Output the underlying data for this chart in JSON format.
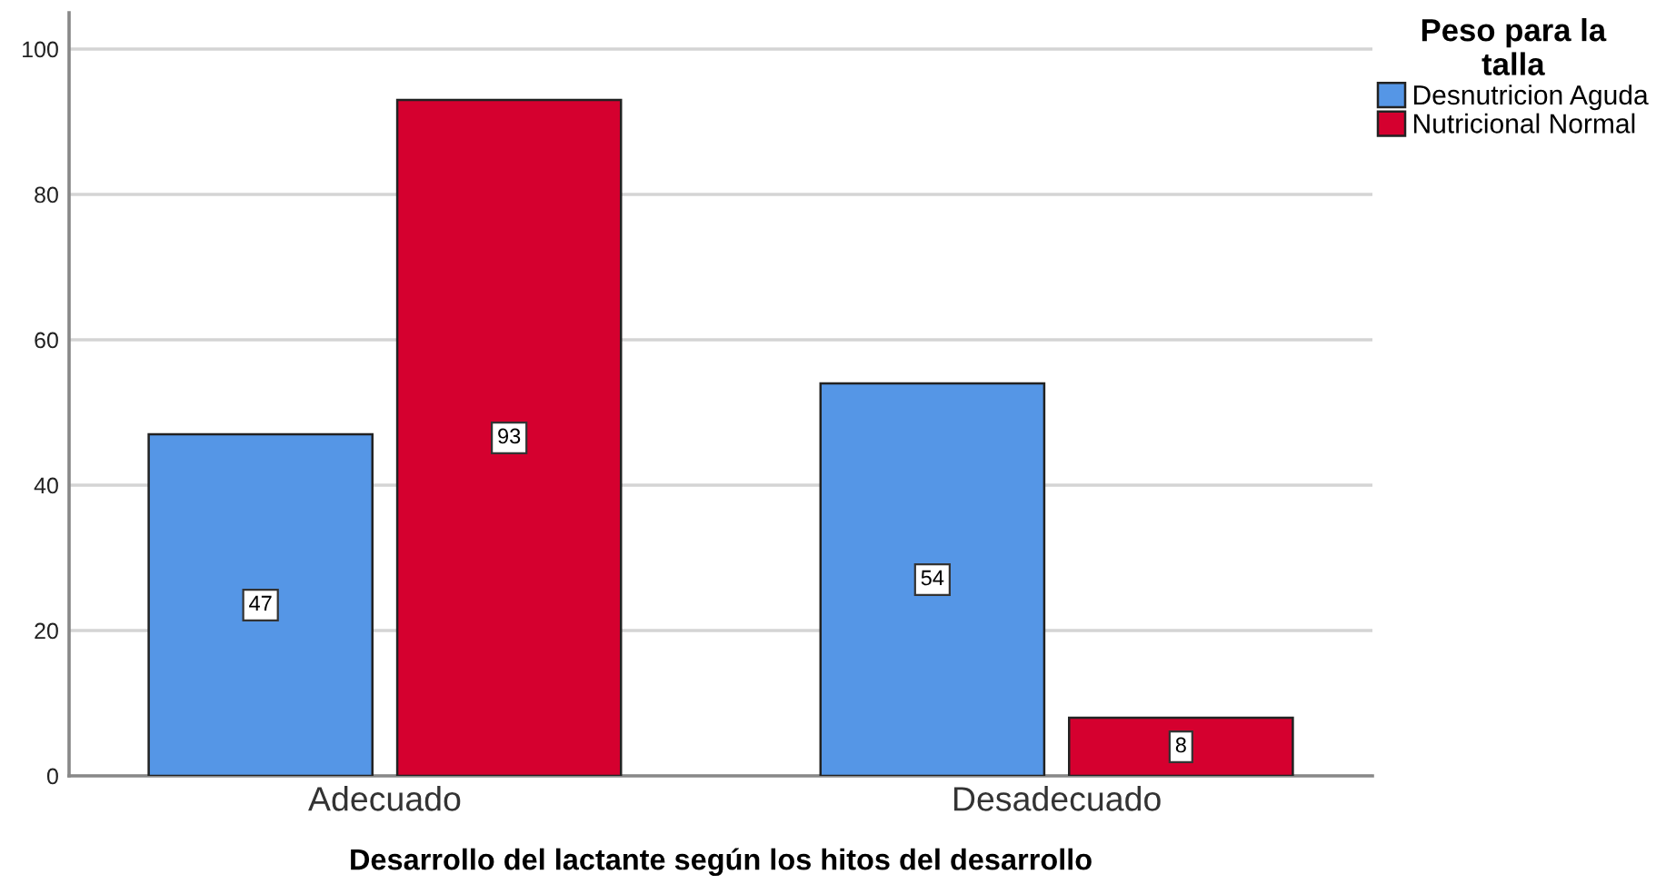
{
  "chart_data": {
    "type": "bar",
    "xlabel": "Desarrollo del lactante según los hitos del desarrollo",
    "legend_title": "Peso para la\ntalla",
    "categories": [
      "Adecuado",
      "Desadecuado"
    ],
    "series": [
      {
        "name": "Desnutricion Aguda",
        "color": "#5596e6",
        "values": [
          47,
          54
        ]
      },
      {
        "name": "Nutricional Normal",
        "color": "#d5002f",
        "values": [
          93,
          8
        ]
      }
    ],
    "ylim": [
      0,
      105
    ],
    "yticks": [
      0,
      20,
      40,
      60,
      80,
      100
    ],
    "grid": "y",
    "legend": "top right",
    "data_labels": true
  }
}
